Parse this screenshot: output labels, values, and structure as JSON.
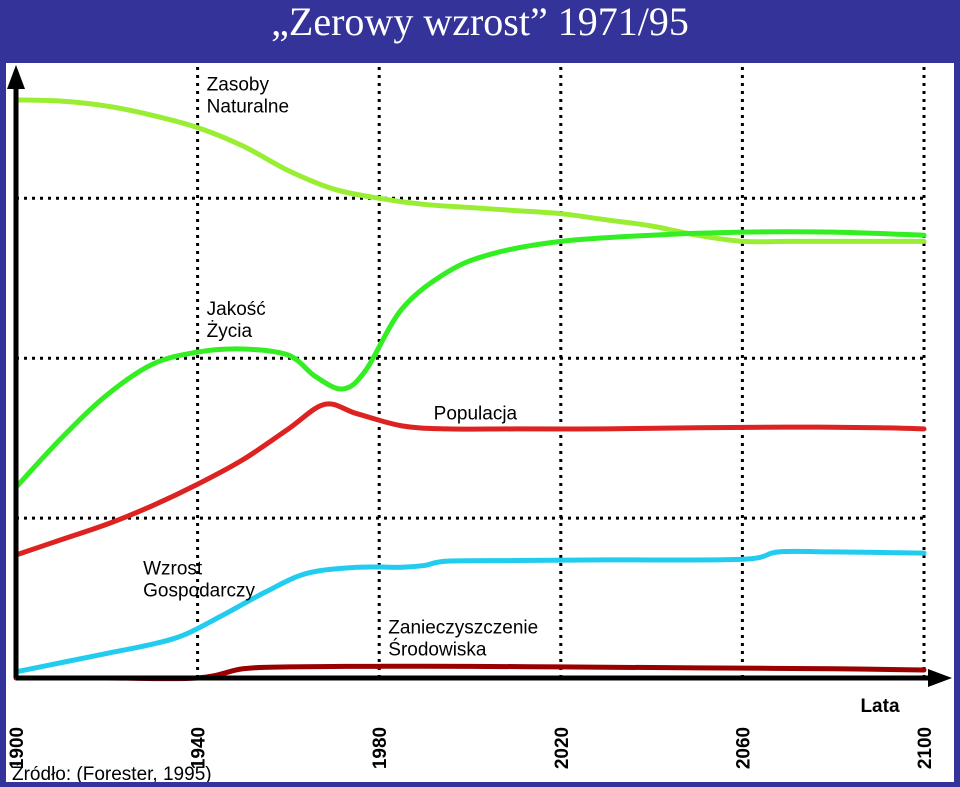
{
  "title": "„Zerowy wzrost” 1971/95",
  "source": "Źródło: (Forester, 1995)",
  "colors": {
    "background": "#333399",
    "panel": "#ffffff",
    "title": "#ffffff",
    "grid": "#000000"
  },
  "chart_data": {
    "type": "line",
    "title": "„Zerowy wzrost” 1971/95",
    "xlabel": "Lata",
    "ylabel": "",
    "xlim": [
      1900,
      2100
    ],
    "ylim": [
      0,
      100
    ],
    "y_ticks_labeled": false,
    "x_tick_labels": [
      "1900",
      "1940",
      "1980",
      "2020",
      "2060",
      "2100"
    ],
    "grid": "dotted at 1940, 1980, 2020, 2060, 2100 and 3 horizontal levels",
    "h_grid_levels": [
      26,
      52,
      78
    ],
    "series": [
      {
        "name": "Zasoby Naturalne",
        "color": "#99ee33",
        "label_lines": [
          "Zasoby",
          "Naturalne"
        ],
        "x": [
          1900,
          1910,
          1920,
          1930,
          1940,
          1950,
          1960,
          1970,
          1980,
          1990,
          2000,
          2010,
          2020,
          2030,
          2040,
          2050,
          2060,
          2070,
          2080,
          2090,
          2100
        ],
        "y": [
          94,
          93.8,
          93,
          91.5,
          89.5,
          86.5,
          82.5,
          79.5,
          78,
          77,
          76.5,
          76,
          75.5,
          74.5,
          73.5,
          72,
          71,
          71,
          71,
          71,
          71
        ]
      },
      {
        "name": "Jakość Życia",
        "color": "#33ee22",
        "label_lines": [
          "Jakość",
          "Życia"
        ],
        "x": [
          1900,
          1910,
          1920,
          1930,
          1940,
          1950,
          1960,
          1966,
          1972,
          1977,
          1985,
          1995,
          2005,
          2020,
          2040,
          2060,
          2080,
          2100
        ],
        "y": [
          31,
          39,
          46,
          51,
          53,
          53.5,
          52.5,
          49,
          47,
          50,
          60,
          66,
          69,
          71,
          72,
          72.5,
          72.5,
          72
        ]
      },
      {
        "name": "Populacja",
        "color": "#dd2222",
        "label_lines": [
          "Populacja"
        ],
        "x": [
          1900,
          1910,
          1920,
          1930,
          1940,
          1950,
          1960,
          1968,
          1975,
          1985,
          1995,
          2010,
          2030,
          2050,
          2070,
          2090,
          2100
        ],
        "y": [
          20,
          22.5,
          25,
          28,
          31.5,
          35.5,
          40.5,
          44.5,
          43,
          41,
          40.5,
          40.5,
          40.5,
          40.7,
          40.8,
          40.7,
          40.5
        ]
      },
      {
        "name": "Wzrost Gospodarczy",
        "color": "#22ccee",
        "label_lines": [
          "Wzrost",
          "Gospodarczy"
        ],
        "x": [
          1900,
          1910,
          1920,
          1930,
          1937,
          1945,
          1955,
          1964,
          1975,
          1985,
          1990,
          1995,
          2010,
          2030,
          2060,
          2068,
          2080,
          2100
        ],
        "y": [
          1,
          2.5,
          4,
          5.5,
          7,
          10,
          14,
          17,
          18,
          18,
          18.3,
          19,
          19.1,
          19.2,
          19.3,
          20.5,
          20.5,
          20.3
        ]
      },
      {
        "name": "Zanieczyszczenie Środowiska",
        "color": "#990000",
        "label_lines": [
          "Zanieczyszczenie",
          "Środowiska"
        ],
        "x": [
          1900,
          1920,
          1940,
          1950,
          1960,
          1980,
          2000,
          2020,
          2040,
          2060,
          2080,
          2100
        ],
        "y": [
          0,
          0,
          0,
          1.5,
          1.8,
          1.9,
          1.9,
          1.8,
          1.7,
          1.6,
          1.5,
          1.3
        ]
      }
    ]
  }
}
